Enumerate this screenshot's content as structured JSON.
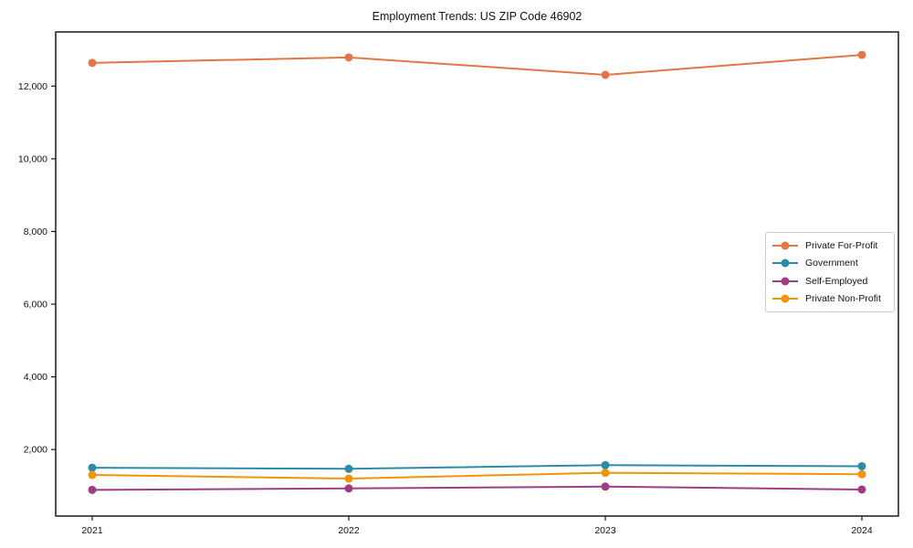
{
  "chart_data": {
    "type": "line",
    "title": "Employment Trends: US ZIP Code 46902",
    "x": [
      "2021",
      "2022",
      "2023",
      "2024"
    ],
    "series": [
      {
        "name": "Private For-Profit",
        "color": "#e1764a",
        "values": [
          12640,
          12790,
          12310,
          12860
        ]
      },
      {
        "name": "Government",
        "color": "#2d8ba8",
        "values": [
          1500,
          1470,
          1570,
          1540
        ]
      },
      {
        "name": "Self-Employed",
        "color": "#a23c82",
        "values": [
          890,
          930,
          980,
          900
        ]
      },
      {
        "name": "Private Non-Profit",
        "color": "#f0940a",
        "values": [
          1300,
          1200,
          1360,
          1320
        ]
      }
    ],
    "yticks": [
      2000,
      4000,
      6000,
      8000,
      10000,
      12000
    ],
    "ytick_labels": [
      "2,000",
      "4,000",
      "6,000",
      "8,000",
      "10,000",
      "12,000"
    ],
    "ylim": [
      170,
      13490
    ],
    "xlabel": "",
    "ylabel": "",
    "grid": false,
    "legend_position": "center-right",
    "axis_color": "#1a1a1a",
    "marker": "circle"
  }
}
